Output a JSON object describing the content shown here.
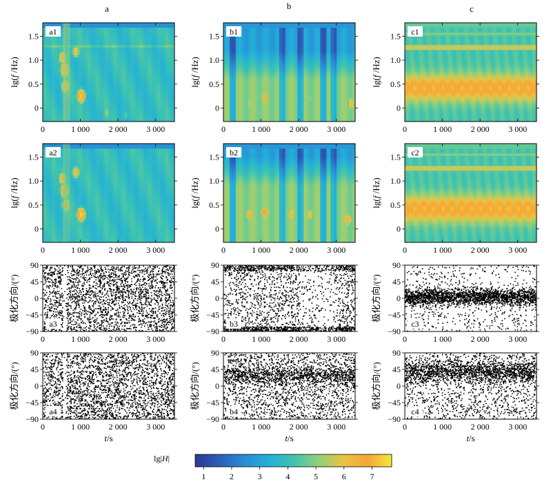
{
  "figure": {
    "column_labels": [
      "a",
      "b",
      "c"
    ],
    "colorbar": {
      "label_prefix": "lg|",
      "label_var": "H",
      "label_suffix": "|",
      "range": [
        0.7,
        7.7
      ],
      "ticks": [
        "1",
        "2",
        "3",
        "4",
        "5",
        "6",
        "7"
      ],
      "colors": [
        "#2b3a8f",
        "#2c5fb8",
        "#2a8bd6",
        "#23b0d8",
        "#3fc3b0",
        "#8fd07a",
        "#e6c546",
        "#f5a636",
        "#f7e83a"
      ]
    }
  },
  "chart_data": [
    {
      "type": "heatmap",
      "panel_label": "a1",
      "xlim": [
        0,
        3500
      ],
      "ylim": [
        -0.28,
        1.78
      ],
      "xticks": [
        {
          "v": 0,
          "label": "0"
        },
        {
          "v": 1000,
          "label": "1 000"
        },
        {
          "v": 2000,
          "label": "2 000"
        },
        {
          "v": 3000,
          "label": "3 000"
        }
      ],
      "yticks": [
        {
          "v": 0,
          "label": "0"
        },
        {
          "v": 0.5,
          "label": "0.5"
        },
        {
          "v": 1.0,
          "label": "1.0"
        },
        {
          "v": 1.5,
          "label": "1.5"
        }
      ],
      "ylabel": {
        "prefix": "lg(",
        "var": "f",
        "suffix": " /Hz)"
      },
      "xlabel": "",
      "blobs": [
        {
          "t": 530,
          "f": 1.05,
          "v": 6.5
        },
        {
          "t": 580,
          "f": 0.8,
          "v": 7.2
        },
        {
          "t": 600,
          "f": 0.45,
          "v": 6.6
        },
        {
          "t": 880,
          "f": 1.18,
          "v": 6.2
        },
        {
          "t": 1020,
          "f": 0.25,
          "v": 7.4
        },
        {
          "t": 1700,
          "f": -0.1,
          "v": 5.2
        },
        {
          "t": 2200,
          "f": -0.15,
          "v": 4.6
        }
      ]
    },
    {
      "type": "heatmap",
      "panel_label": "b1",
      "xlim": [
        0,
        3500
      ],
      "ylim": [
        -0.28,
        1.78
      ],
      "xticks": [
        {
          "v": 0,
          "label": "0"
        },
        {
          "v": 1000,
          "label": "1 000"
        },
        {
          "v": 2000,
          "label": "2 000"
        },
        {
          "v": 3000,
          "label": "3 000"
        }
      ],
      "yticks": [
        {
          "v": 0,
          "label": "0"
        },
        {
          "v": 0.5,
          "label": "0.5"
        },
        {
          "v": 1.0,
          "label": "1.0"
        },
        {
          "v": 1.5,
          "label": "1.5"
        }
      ],
      "ylabel": {
        "prefix": "lg(",
        "var": "f",
        "suffix": " /Hz)"
      },
      "xlabel": "",
      "blobs": [
        {
          "t": 1100,
          "f": 0.2,
          "v": 6.6
        },
        {
          "t": 700,
          "f": 0.1,
          "v": 5.6
        },
        {
          "t": 1800,
          "f": 0.1,
          "v": 5.5
        },
        {
          "t": 2300,
          "f": 0.2,
          "v": 5.2
        },
        {
          "t": 3400,
          "f": 0.1,
          "v": 6.4
        }
      ]
    },
    {
      "type": "heatmap",
      "panel_label": "c1",
      "xlim": [
        0,
        3500
      ],
      "ylim": [
        -0.28,
        1.78
      ],
      "xticks": [
        {
          "v": 0,
          "label": "0"
        },
        {
          "v": 1000,
          "label": "1 000"
        },
        {
          "v": 2000,
          "label": "2 000"
        },
        {
          "v": 3000,
          "label": "3 000"
        }
      ],
      "yticks": [
        {
          "v": 0,
          "label": "0"
        },
        {
          "v": 0.5,
          "label": "0.5"
        },
        {
          "v": 1.0,
          "label": "1.0"
        },
        {
          "v": 1.5,
          "label": "1.5"
        }
      ],
      "ylabel": {
        "prefix": "lg(",
        "var": "f",
        "suffix": " /Hz)"
      },
      "xlabel": "",
      "blobs": [
        {
          "t": 200,
          "f": 0.4,
          "v": 6.8
        },
        {
          "t": 900,
          "f": 0.42,
          "v": 7.0
        },
        {
          "t": 1800,
          "f": 0.4,
          "v": 7.1
        },
        {
          "t": 2600,
          "f": 0.42,
          "v": 6.9
        },
        {
          "t": 3300,
          "f": 0.4,
          "v": 7.0
        }
      ]
    },
    {
      "type": "heatmap",
      "panel_label": "a2",
      "xlim": [
        0,
        3500
      ],
      "ylim": [
        -0.28,
        1.78
      ],
      "xticks": [
        {
          "v": 0,
          "label": "0"
        },
        {
          "v": 1000,
          "label": "1 000"
        },
        {
          "v": 2000,
          "label": "2 000"
        },
        {
          "v": 3000,
          "label": "3 000"
        }
      ],
      "yticks": [
        {
          "v": 0,
          "label": "0"
        },
        {
          "v": 0.5,
          "label": "0.5"
        },
        {
          "v": 1.0,
          "label": "1.0"
        },
        {
          "v": 1.5,
          "label": "1.5"
        }
      ],
      "ylabel": {
        "prefix": "lg(",
        "var": "f",
        "suffix": " /Hz)"
      },
      "xlabel": "",
      "blobs": [
        {
          "t": 530,
          "f": 1.05,
          "v": 6.5
        },
        {
          "t": 580,
          "f": 0.8,
          "v": 7.3
        },
        {
          "t": 620,
          "f": 0.5,
          "v": 6.8
        },
        {
          "t": 880,
          "f": 1.18,
          "v": 6.3
        },
        {
          "t": 1020,
          "f": 0.3,
          "v": 7.6
        }
      ]
    },
    {
      "type": "heatmap",
      "panel_label": "b2",
      "xlim": [
        0,
        3500
      ],
      "ylim": [
        -0.28,
        1.78
      ],
      "xticks": [
        {
          "v": 0,
          "label": "0"
        },
        {
          "v": 1000,
          "label": "1 000"
        },
        {
          "v": 2000,
          "label": "2 000"
        },
        {
          "v": 3000,
          "label": "3 000"
        }
      ],
      "yticks": [
        {
          "v": 0,
          "label": "0"
        },
        {
          "v": 0.5,
          "label": "0.5"
        },
        {
          "v": 1.0,
          "label": "1.0"
        },
        {
          "v": 1.5,
          "label": "1.5"
        }
      ],
      "ylabel": {
        "prefix": "lg(",
        "var": "f",
        "suffix": " /Hz)"
      },
      "xlabel": "",
      "blobs": [
        {
          "t": 700,
          "f": 0.3,
          "v": 6.6
        },
        {
          "t": 1100,
          "f": 0.35,
          "v": 6.9
        },
        {
          "t": 1800,
          "f": 0.3,
          "v": 6.4
        },
        {
          "t": 2300,
          "f": 0.3,
          "v": 6.2
        },
        {
          "t": 3300,
          "f": 0.2,
          "v": 6.6
        }
      ]
    },
    {
      "type": "heatmap",
      "panel_label": "c2",
      "xlim": [
        0,
        3500
      ],
      "ylim": [
        -0.28,
        1.78
      ],
      "xticks": [
        {
          "v": 0,
          "label": "0"
        },
        {
          "v": 1000,
          "label": "1 000"
        },
        {
          "v": 2000,
          "label": "2 000"
        },
        {
          "v": 3000,
          "label": "3 000"
        }
      ],
      "yticks": [
        {
          "v": 0,
          "label": "0"
        },
        {
          "v": 0.5,
          "label": "0.5"
        },
        {
          "v": 1.0,
          "label": "1.0"
        },
        {
          "v": 1.5,
          "label": "1.5"
        }
      ],
      "ylabel": {
        "prefix": "lg(",
        "var": "f",
        "suffix": " /Hz)"
      },
      "xlabel": "",
      "blobs": [
        {
          "t": 300,
          "f": 0.4,
          "v": 7.0
        },
        {
          "t": 1000,
          "f": 0.42,
          "v": 7.2
        },
        {
          "t": 1800,
          "f": 0.4,
          "v": 7.3
        },
        {
          "t": 2700,
          "f": 0.42,
          "v": 7.1
        },
        {
          "t": 3300,
          "f": 0.4,
          "v": 7.0
        }
      ]
    },
    {
      "type": "scatter",
      "panel_label": "a3",
      "xlim": [
        0,
        3500
      ],
      "ylim": [
        -90,
        90
      ],
      "xticks": [
        {
          "v": 0,
          "label": "0"
        },
        {
          "v": 1000,
          "label": "1 000"
        },
        {
          "v": 2000,
          "label": "2 000"
        },
        {
          "v": 3000,
          "label": "3 000"
        }
      ],
      "yticks": [
        {
          "v": -90,
          "label": "−90"
        },
        {
          "v": -45,
          "label": "−45"
        },
        {
          "v": 0,
          "label": "0"
        },
        {
          "v": 45,
          "label": "45"
        },
        {
          "v": 90,
          "label": "90"
        }
      ],
      "ylabel": "极化方向/(°)",
      "xlabel": "",
      "pattern": "uniform",
      "n_points": 2600
    },
    {
      "type": "scatter",
      "panel_label": "b3",
      "xlim": [
        0,
        3500
      ],
      "ylim": [
        -90,
        90
      ],
      "xticks": [
        {
          "v": 0,
          "label": "0"
        },
        {
          "v": 1000,
          "label": "1 000"
        },
        {
          "v": 2000,
          "label": "2 000"
        },
        {
          "v": 3000,
          "label": "3 000"
        }
      ],
      "yticks": [
        {
          "v": -90,
          "label": "−90"
        },
        {
          "v": -45,
          "label": "−45"
        },
        {
          "v": 0,
          "label": "0"
        },
        {
          "v": 45,
          "label": "45"
        },
        {
          "v": 90,
          "label": "90"
        }
      ],
      "ylabel": "极化方向/(°)",
      "xlabel": "",
      "pattern": "bands",
      "n_points": 2600
    },
    {
      "type": "scatter",
      "panel_label": "c3",
      "xlim": [
        0,
        3500
      ],
      "ylim": [
        -90,
        90
      ],
      "xticks": [
        {
          "v": 0,
          "label": "0"
        },
        {
          "v": 1000,
          "label": "1 000"
        },
        {
          "v": 2000,
          "label": "2 000"
        },
        {
          "v": 3000,
          "label": "3 000"
        }
      ],
      "yticks": [
        {
          "v": -90,
          "label": "−90"
        },
        {
          "v": -45,
          "label": "−45"
        },
        {
          "v": 0,
          "label": "0"
        },
        {
          "v": 45,
          "label": "45"
        },
        {
          "v": 90,
          "label": "90"
        }
      ],
      "ylabel": "极化方向/(°)",
      "xlabel": "",
      "pattern": "concentrated",
      "center": 5,
      "n_points": 2600
    },
    {
      "type": "scatter",
      "panel_label": "a4",
      "xlim": [
        0,
        3500
      ],
      "ylim": [
        -90,
        90
      ],
      "xticks": [
        {
          "v": 0,
          "label": "0"
        },
        {
          "v": 1000,
          "label": "1 000"
        },
        {
          "v": 2000,
          "label": "2 000"
        },
        {
          "v": 3000,
          "label": "3 000"
        }
      ],
      "yticks": [
        {
          "v": -90,
          "label": "−90"
        },
        {
          "v": -45,
          "label": "−45"
        },
        {
          "v": 0,
          "label": "0"
        },
        {
          "v": 45,
          "label": "45"
        },
        {
          "v": 90,
          "label": "90"
        }
      ],
      "ylabel": "极化方向/(°)",
      "xlabel_var": "t",
      "xlabel_suffix": "/s",
      "pattern": "uniform",
      "n_points": 2600
    },
    {
      "type": "scatter",
      "panel_label": "b4",
      "xlim": [
        0,
        3500
      ],
      "ylim": [
        -90,
        90
      ],
      "xticks": [
        {
          "v": 0,
          "label": "0"
        },
        {
          "v": 1000,
          "label": "1 000"
        },
        {
          "v": 2000,
          "label": "2 000"
        },
        {
          "v": 3000,
          "label": "3 000"
        }
      ],
      "yticks": [
        {
          "v": -90,
          "label": "−90"
        },
        {
          "v": -45,
          "label": "−45"
        },
        {
          "v": 0,
          "label": "0"
        },
        {
          "v": 45,
          "label": "45"
        },
        {
          "v": 90,
          "label": "90"
        }
      ],
      "ylabel": "极化方向/(°)",
      "xlabel_var": "t",
      "xlabel_suffix": "/s",
      "pattern": "diagonal",
      "n_points": 2600
    },
    {
      "type": "scatter",
      "panel_label": "c4",
      "xlim": [
        0,
        3500
      ],
      "ylim": [
        -90,
        90
      ],
      "xticks": [
        {
          "v": 0,
          "label": "0"
        },
        {
          "v": 1000,
          "label": "1 000"
        },
        {
          "v": 2000,
          "label": "2 000"
        },
        {
          "v": 3000,
          "label": "3 000"
        }
      ],
      "yticks": [
        {
          "v": -90,
          "label": "−90"
        },
        {
          "v": -45,
          "label": "−45"
        },
        {
          "v": 0,
          "label": "0"
        },
        {
          "v": 45,
          "label": "45"
        },
        {
          "v": 90,
          "label": "90"
        }
      ],
      "ylabel": "极化方向/(°)",
      "xlabel_var": "t",
      "xlabel_suffix": "/s",
      "pattern": "upper",
      "center": 40,
      "n_points": 2600
    }
  ]
}
